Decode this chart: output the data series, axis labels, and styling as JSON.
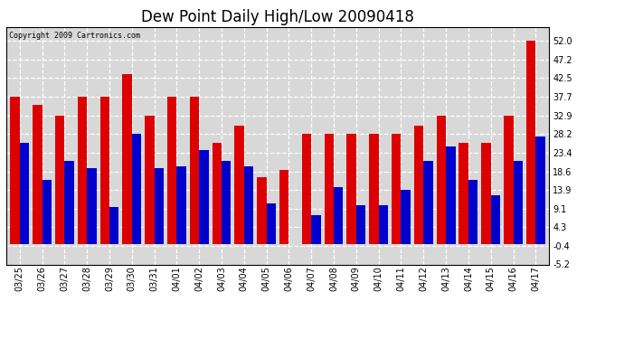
{
  "title": "Dew Point Daily High/Low 20090418",
  "copyright": "Copyright 2009 Cartronics.com",
  "dates": [
    "03/25",
    "03/26",
    "03/27",
    "03/28",
    "03/29",
    "03/30",
    "03/31",
    "04/01",
    "04/02",
    "04/03",
    "04/04",
    "04/05",
    "04/06",
    "04/07",
    "04/08",
    "04/09",
    "04/10",
    "04/11",
    "04/12",
    "04/13",
    "04/14",
    "04/15",
    "04/16",
    "04/17"
  ],
  "highs": [
    37.7,
    35.6,
    32.9,
    37.7,
    37.7,
    43.5,
    32.9,
    37.7,
    37.7,
    26.0,
    30.2,
    17.0,
    19.0,
    28.2,
    28.2,
    28.2,
    28.2,
    28.2,
    30.2,
    32.9,
    26.0,
    26.0,
    32.9,
    52.0
  ],
  "lows": [
    26.0,
    16.5,
    21.2,
    19.5,
    9.5,
    28.2,
    19.5,
    20.0,
    24.0,
    21.2,
    20.0,
    10.5,
    0.0,
    7.5,
    14.5,
    10.0,
    10.0,
    13.9,
    21.2,
    25.0,
    16.5,
    12.5,
    21.2,
    27.5
  ],
  "high_color": "#dd0000",
  "low_color": "#0000cc",
  "bg_color": "#ffffff",
  "plot_bg_color": "#d8d8d8",
  "grid_color": "#ffffff",
  "title_fontsize": 12,
  "yticks": [
    -5.2,
    -0.4,
    4.3,
    9.1,
    13.9,
    18.6,
    23.4,
    28.2,
    32.9,
    37.7,
    42.5,
    47.2,
    52.0
  ],
  "ymin": -5.2,
  "ymax": 55.5
}
